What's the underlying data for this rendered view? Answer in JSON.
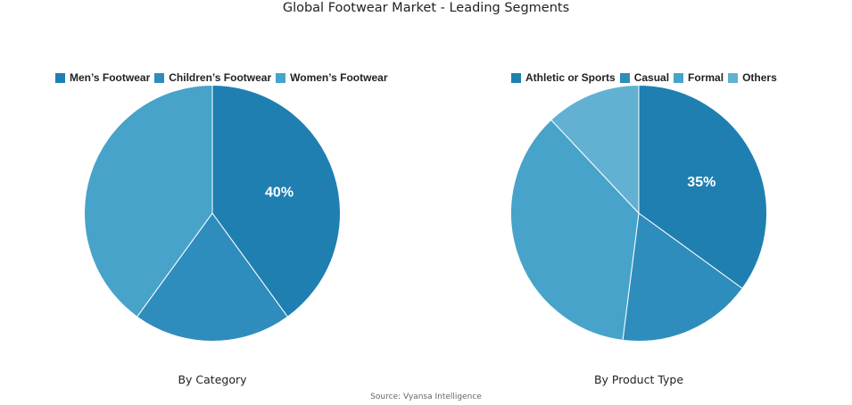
{
  "title": "Global Footwear Market - Leading Segments",
  "source": "Source: Vyansa Intelligence",
  "chart_data": [
    {
      "type": "pie",
      "subtitle": "By Category",
      "legend_position": "top",
      "labels": [
        "Men’s Footwear",
        "Children’s Footwear",
        "Women’s Footwear"
      ],
      "values": [
        40,
        20,
        40
      ],
      "colors": [
        "#1f7fb1",
        "#2e8dbc",
        "#47a3c9"
      ],
      "data_labels": [
        "40%",
        "",
        ""
      ]
    },
    {
      "type": "pie",
      "subtitle": "By Product Type",
      "legend_position": "top",
      "labels": [
        "Athletic or Sports",
        "Casual",
        "Formal",
        "Others"
      ],
      "values": [
        35,
        17,
        36,
        12
      ],
      "colors": [
        "#1f7fb1",
        "#2e8dbc",
        "#47a3c9",
        "#62b1d2"
      ],
      "data_labels": [
        "35%",
        "",
        "",
        ""
      ]
    }
  ]
}
